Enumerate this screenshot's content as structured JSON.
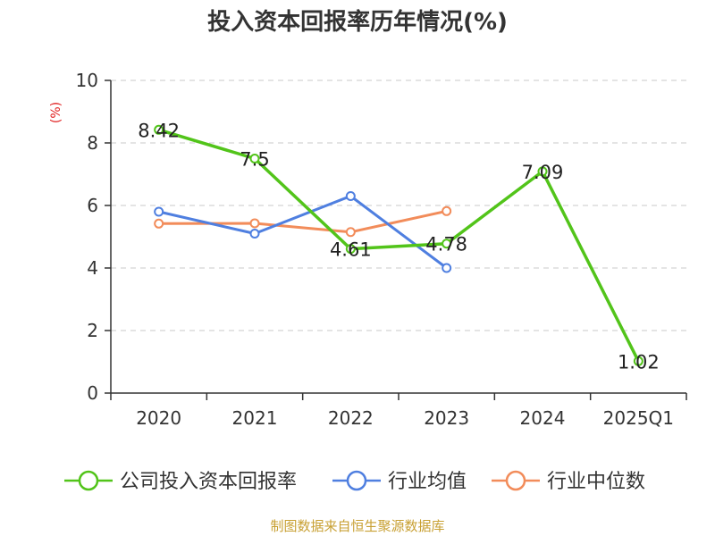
{
  "page": {
    "source": "制图数据来自恒生聚源数据库"
  },
  "chart_data": {
    "type": "line",
    "title": "投入资本回报率历年情况(%)",
    "ylabel": "(%)",
    "xlabel": "",
    "categories": [
      "2020",
      "2021",
      "2022",
      "2023",
      "2024",
      "2025Q1"
    ],
    "ylim": [
      0,
      10
    ],
    "yticks": [
      0,
      2,
      4,
      6,
      8,
      10
    ],
    "grid": true,
    "legend_position": "bottom",
    "series": [
      {
        "name": "公司投入资本回报率",
        "color": "#52c41a",
        "values": [
          8.42,
          7.5,
          4.61,
          4.78,
          7.09,
          1.02
        ],
        "labels": [
          "8.42",
          "7.5",
          "4.61",
          "4.78",
          "7.09",
          "1.02"
        ]
      },
      {
        "name": "行业均值",
        "color": "#4f7fe0",
        "values": [
          5.8,
          5.1,
          6.3,
          4.0,
          null,
          null
        ]
      },
      {
        "name": "行业中位数",
        "color": "#f28c5a",
        "values": [
          5.42,
          5.43,
          5.15,
          5.82,
          null,
          null
        ]
      }
    ]
  }
}
